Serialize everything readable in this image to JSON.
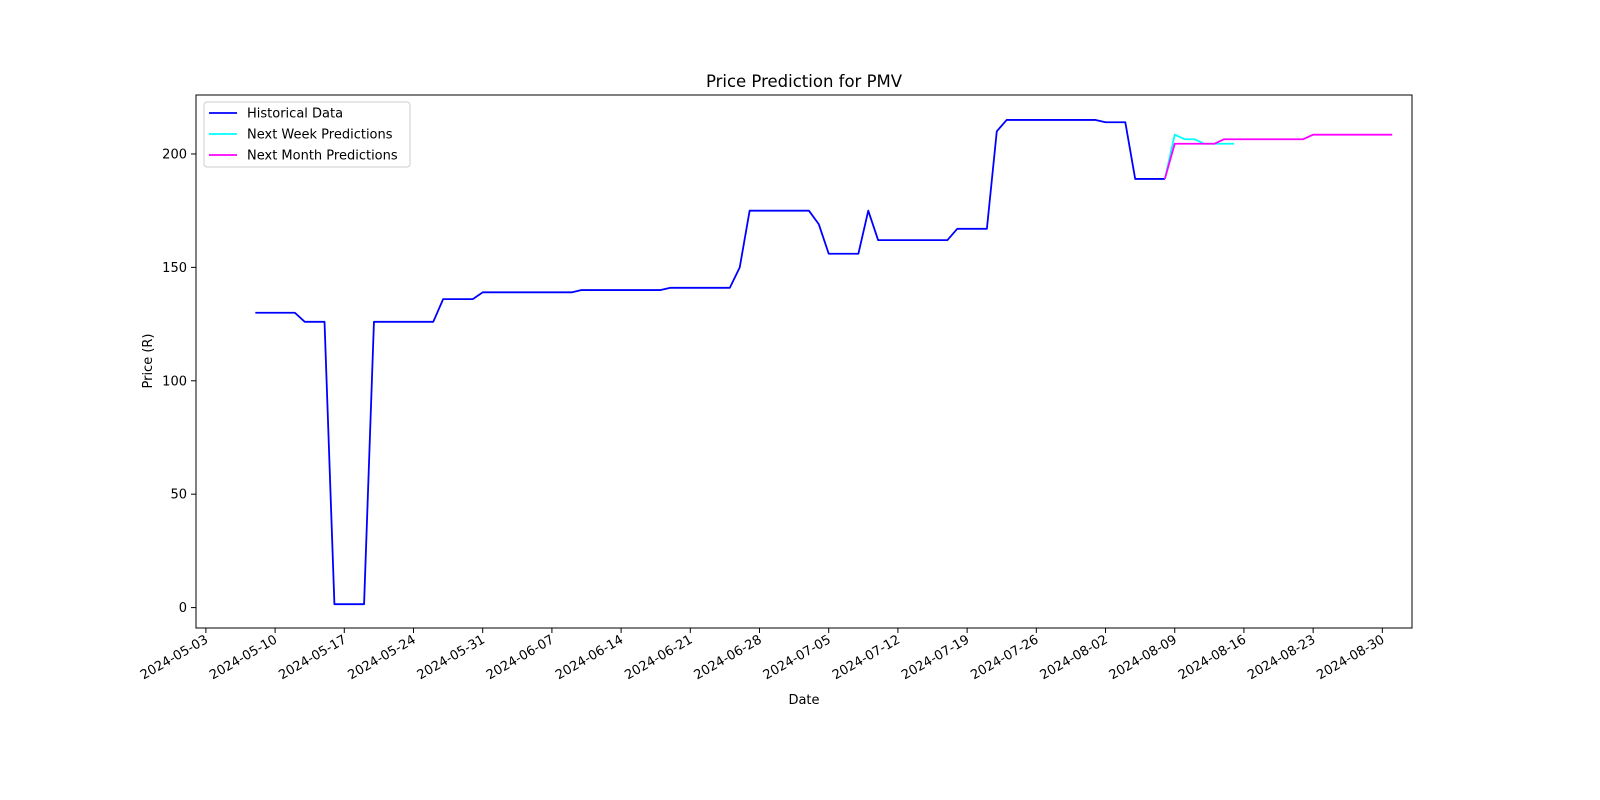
{
  "chart_data": {
    "type": "line",
    "title": "Price Prediction for PMV",
    "xlabel": "Date",
    "ylabel": "Price (R)",
    "xlim": [
      "2024-05-02",
      "2024-09-02"
    ],
    "ylim": [
      -9,
      226
    ],
    "x_ticks": [
      "2024-05-03",
      "2024-05-10",
      "2024-05-17",
      "2024-05-24",
      "2024-05-31",
      "2024-06-07",
      "2024-06-14",
      "2024-06-21",
      "2024-06-28",
      "2024-07-05",
      "2024-07-12",
      "2024-07-19",
      "2024-07-26",
      "2024-08-02",
      "2024-08-09",
      "2024-08-16",
      "2024-08-23",
      "2024-08-30"
    ],
    "y_ticks": [
      0,
      50,
      100,
      150,
      200
    ],
    "grid": false,
    "legend": "top-left",
    "series": [
      {
        "name": "Historical Data",
        "color": "#0000ff",
        "points": [
          [
            "2024-05-08",
            130
          ],
          [
            "2024-05-12",
            130
          ],
          [
            "2024-05-13",
            126
          ],
          [
            "2024-05-15",
            126
          ],
          [
            "2024-05-16",
            1.5
          ],
          [
            "2024-05-19",
            1.5
          ],
          [
            "2024-05-20",
            126
          ],
          [
            "2024-05-26",
            126
          ],
          [
            "2024-05-27",
            136
          ],
          [
            "2024-05-30",
            136
          ],
          [
            "2024-05-31",
            139
          ],
          [
            "2024-06-09",
            139
          ],
          [
            "2024-06-10",
            140
          ],
          [
            "2024-06-18",
            140
          ],
          [
            "2024-06-19",
            141
          ],
          [
            "2024-06-25",
            141
          ],
          [
            "2024-06-26",
            150
          ],
          [
            "2024-06-27",
            175
          ],
          [
            "2024-07-03",
            175
          ],
          [
            "2024-07-04",
            169
          ],
          [
            "2024-07-05",
            156
          ],
          [
            "2024-07-08",
            156
          ],
          [
            "2024-07-09",
            175
          ],
          [
            "2024-07-10",
            162
          ],
          [
            "2024-07-17",
            162
          ],
          [
            "2024-07-18",
            167
          ],
          [
            "2024-07-21",
            167
          ],
          [
            "2024-07-22",
            210
          ],
          [
            "2024-07-23",
            215
          ],
          [
            "2024-08-01",
            215
          ],
          [
            "2024-08-02",
            214
          ],
          [
            "2024-08-04",
            214
          ],
          [
            "2024-08-05",
            189
          ],
          [
            "2024-08-08",
            189
          ]
        ]
      },
      {
        "name": "Next Week Predictions",
        "color": "#00ffff",
        "points": [
          [
            "2024-08-08",
            189
          ],
          [
            "2024-08-09",
            208.5
          ],
          [
            "2024-08-10",
            206.5
          ],
          [
            "2024-08-11",
            206.5
          ],
          [
            "2024-08-12",
            204.5
          ],
          [
            "2024-08-13",
            204.5
          ],
          [
            "2024-08-14",
            204.5
          ],
          [
            "2024-08-15",
            204.5
          ]
        ]
      },
      {
        "name": "Next Month Predictions",
        "color": "#ff00ff",
        "points": [
          [
            "2024-08-08",
            189
          ],
          [
            "2024-08-09",
            204.5
          ],
          [
            "2024-08-13",
            204.5
          ],
          [
            "2024-08-14",
            206.5
          ],
          [
            "2024-08-22",
            206.5
          ],
          [
            "2024-08-23",
            208.5
          ],
          [
            "2024-08-31",
            208.5
          ]
        ]
      }
    ]
  }
}
